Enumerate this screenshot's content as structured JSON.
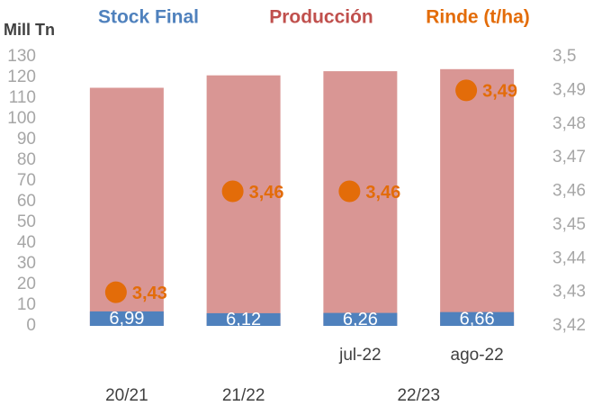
{
  "chart_data": {
    "type": "bar",
    "ylabel": "Mill Tn",
    "categories": [
      "20/21",
      "21/22",
      "jul-22",
      "ago-22"
    ],
    "groups": [
      {
        "label": "22/23",
        "start": 2,
        "end": 3
      }
    ],
    "series": [
      {
        "name": "Stock Final",
        "color": "#4f81bd",
        "text_color": "#4f81bd",
        "values": [
          6.99,
          6.12,
          6.26,
          6.66
        ],
        "value_labels": [
          "6,99",
          "6,12",
          "6,26",
          "6,66"
        ]
      },
      {
        "name": "Producción",
        "color": "#d99694",
        "text_color": "#c0504d",
        "values": [
          115,
          121,
          123,
          124
        ]
      },
      {
        "name": "Rinde (t/ha)",
        "color": "#e36c09",
        "text_color": "#e36c09",
        "axis": "y2",
        "values": [
          3.43,
          3.46,
          3.46,
          3.49
        ],
        "value_labels": [
          "3,43",
          "3,46",
          "3,46",
          "3,49"
        ]
      }
    ],
    "ylim": [
      0,
      130
    ],
    "yticks": [
      0,
      10,
      20,
      30,
      40,
      50,
      60,
      70,
      80,
      90,
      100,
      110,
      120,
      130
    ],
    "y2lim": [
      3.42,
      3.5
    ],
    "y2ticks": [
      {
        "value": 3.42,
        "label": "3,42"
      },
      {
        "value": 3.43,
        "label": "3,43"
      },
      {
        "value": 3.44,
        "label": "3,44"
      },
      {
        "value": 3.45,
        "label": "3,45"
      },
      {
        "value": 3.46,
        "label": "3,46"
      },
      {
        "value": 3.47,
        "label": "3,47"
      },
      {
        "value": 3.48,
        "label": "3,48"
      },
      {
        "value": 3.49,
        "label": "3,49"
      },
      {
        "value": 3.5,
        "label": "3,5"
      }
    ],
    "grid": false
  }
}
